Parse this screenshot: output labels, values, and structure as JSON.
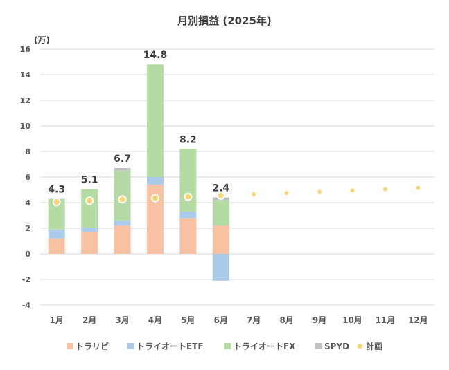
{
  "chart_data": {
    "type": "bar",
    "title": "月別損益 (2025年)",
    "unit_label": "(万)",
    "categories": [
      "1月",
      "2月",
      "3月",
      "4月",
      "5月",
      "6月",
      "7月",
      "8月",
      "9月",
      "10月",
      "11月",
      "12月"
    ],
    "series": [
      {
        "name": "トラリピ",
        "kind": "bar",
        "color": "#f8c1a1",
        "values": [
          1.2,
          1.7,
          2.2,
          5.4,
          2.8,
          2.2,
          null,
          null,
          null,
          null,
          null,
          null
        ]
      },
      {
        "name": "トライオートETF",
        "kind": "bar",
        "color": "#aacbea",
        "values": [
          0.7,
          0.35,
          0.4,
          0.6,
          0.5,
          -2.1,
          null,
          null,
          null,
          null,
          null,
          null
        ]
      },
      {
        "name": "トライオートFX",
        "kind": "bar",
        "color": "#b5dba4",
        "values": [
          2.4,
          3.0,
          3.9,
          8.8,
          4.9,
          2.0,
          null,
          null,
          null,
          null,
          null,
          null
        ]
      },
      {
        "name": "SPYD",
        "kind": "bar",
        "color": "#c1c1c1",
        "values": [
          0.0,
          0.0,
          0.2,
          0.0,
          0.0,
          0.2,
          null,
          null,
          null,
          null,
          null,
          null
        ]
      },
      {
        "name": "計画",
        "kind": "point",
        "color": "#fad571",
        "values": [
          4.05,
          4.15,
          4.25,
          4.35,
          4.45,
          4.55,
          4.65,
          4.75,
          4.85,
          4.95,
          5.05,
          5.15
        ]
      }
    ],
    "totals": [
      "4.3",
      "5.1",
      "6.7",
      "14.8",
      "8.2",
      "2.4",
      "",
      "",
      "",
      "",
      "",
      ""
    ],
    "ylim": [
      -4,
      16
    ],
    "yticks": [
      "16",
      "14",
      "12",
      "10",
      "8",
      "6",
      "4",
      "2",
      "0",
      "-2",
      "-4"
    ],
    "grid": true,
    "legend_position": "bottom"
  }
}
